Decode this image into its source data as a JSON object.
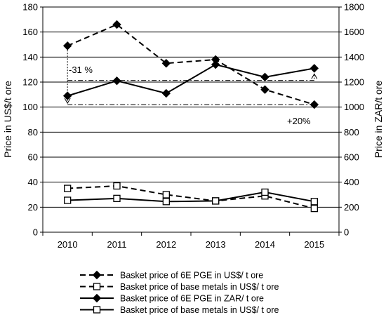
{
  "chart_data": {
    "type": "line",
    "x": [
      "2010",
      "2011",
      "2012",
      "2013",
      "2014",
      "2015"
    ],
    "ylabel": "Price in US$/t ore",
    "y2label": "Price in ZAR/t ore",
    "ylim": [
      0,
      180
    ],
    "yticks": [
      "0",
      "20",
      "40",
      "60",
      "80",
      "100",
      "120",
      "140",
      "160",
      "180"
    ],
    "y2lim": [
      0,
      1800
    ],
    "y2ticks": [
      "0",
      "200",
      "400",
      "600",
      "800",
      "1000",
      "1200",
      "1400",
      "1600",
      "1800"
    ],
    "grid": true,
    "legend_position": "bottom",
    "series": [
      {
        "name": "Basket price of 6E PGE in US$/ t ore",
        "axis": "left",
        "marker": "diamond",
        "line": "dashed",
        "values": [
          149,
          166,
          135,
          138,
          114,
          102
        ]
      },
      {
        "name": "Basket price of base metals in US$/ t ore",
        "axis": "left",
        "marker": "square-open",
        "line": "dashed",
        "values": [
          35,
          37,
          30,
          25,
          29,
          19
        ]
      },
      {
        "name": "Basket price of 6E PGE in ZAR/ t ore",
        "axis": "right",
        "marker": "diamond",
        "line": "solid",
        "values": [
          1090,
          1210,
          1110,
          1340,
          1240,
          1310
        ]
      },
      {
        "name": "Basket price of base metals in US$/ t ore",
        "axis": "right",
        "marker": "square-open",
        "line": "solid",
        "values": [
          255,
          270,
          245,
          250,
          320,
          245
        ]
      }
    ],
    "annotations": [
      {
        "text": "-31 %"
      },
      {
        "text": "+20%"
      }
    ]
  }
}
